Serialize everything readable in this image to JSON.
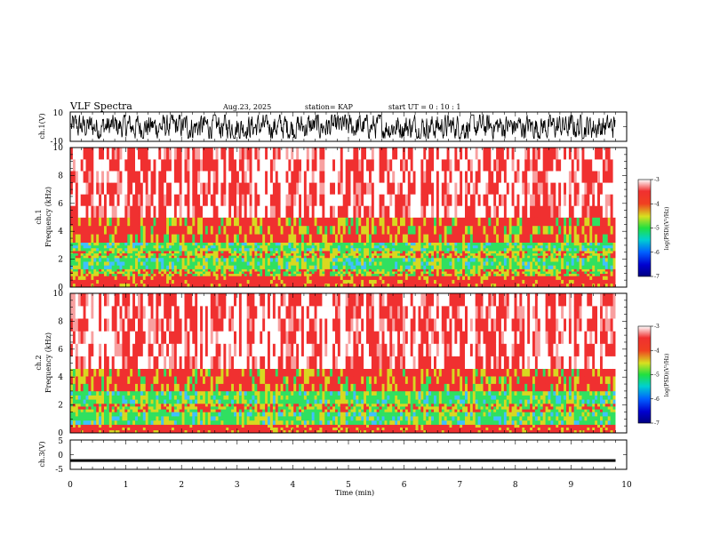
{
  "header": {
    "title": "VLF Spectra",
    "date": "Aug.23, 2025",
    "station": "station= KAP",
    "start_ut": "start  UT =   0  : 10 : 1"
  },
  "colors": {
    "red": "#f03030",
    "yellow": "#d8d820",
    "green": "#30e060",
    "cyan": "#40c0ff",
    "blue": "#0000d0",
    "navy": "#000080",
    "trace": "#000000"
  },
  "chart_data": [
    {
      "type": "line",
      "name": "ch1-waveform",
      "ylabel": "ch.1(V)",
      "ylim": [
        -10,
        10
      ],
      "yticks": [
        "10",
        "-10"
      ],
      "xlim": [
        0,
        10
      ],
      "trace_extent_min": [
        0.0,
        9.8
      ],
      "trace_range_v": [
        -8,
        8
      ]
    },
    {
      "type": "heatmap",
      "name": "ch1-spectrogram",
      "ylabel": "ch.1\nFrequency (kHz)",
      "ylabel_lines": [
        "ch.1",
        "Frequency (kHz)"
      ],
      "ylim": [
        0,
        10
      ],
      "yticks": [
        "0",
        "2",
        "4",
        "6",
        "8",
        "10"
      ],
      "xlim": [
        0,
        10
      ],
      "data_extent_min": [
        0.0,
        9.8
      ],
      "bands_khz": [
        {
          "range": [
            0.0,
            0.8
          ],
          "level": "red"
        },
        {
          "range": [
            0.8,
            1.3
          ],
          "level": "yellow"
        },
        {
          "range": [
            1.3,
            2.1
          ],
          "level": "green"
        },
        {
          "range": [
            2.1,
            2.6
          ],
          "level": "yellow"
        },
        {
          "range": [
            2.6,
            3.2
          ],
          "level": "green"
        },
        {
          "range": [
            3.2,
            5.0
          ],
          "level": "yellow-red"
        },
        {
          "range": [
            5.0,
            10.0
          ],
          "level": "red-white"
        }
      ],
      "colorbar": {
        "label": "log(PSD)(V²/Hz)",
        "range": [
          -7,
          -3
        ],
        "ticks": [
          "-3",
          "-4",
          "-5",
          "-6",
          "-7"
        ]
      }
    },
    {
      "type": "heatmap",
      "name": "ch2-spectrogram",
      "ylabel": "ch.2\nFrequency (kHz)",
      "ylabel_lines": [
        "ch.2",
        "Frequency (kHz)"
      ],
      "ylim": [
        0,
        10
      ],
      "yticks": [
        "0",
        "2",
        "4",
        "6",
        "8",
        "10"
      ],
      "xlim": [
        0,
        10
      ],
      "data_extent_min": [
        0.0,
        9.8
      ],
      "bands_khz": [
        {
          "range": [
            0.0,
            0.6
          ],
          "level": "red"
        },
        {
          "range": [
            0.6,
            1.5
          ],
          "level": "green"
        },
        {
          "range": [
            1.5,
            2.1
          ],
          "level": "yellow"
        },
        {
          "range": [
            2.1,
            3.0
          ],
          "level": "green"
        },
        {
          "range": [
            3.0,
            4.6
          ],
          "level": "yellow-red"
        },
        {
          "range": [
            4.6,
            10.0
          ],
          "level": "red-white"
        }
      ],
      "colorbar": {
        "label": "log(PSD)(V²/Hz)",
        "range": [
          -7,
          -3
        ],
        "ticks": [
          "-3",
          "-4",
          "-5",
          "-6",
          "-7"
        ]
      }
    },
    {
      "type": "line",
      "name": "ch3-waveform",
      "ylabel": "ch.3(V)",
      "ylim": [
        -5,
        5
      ],
      "yticks": [
        "5",
        "0",
        "-5"
      ],
      "xlim": [
        0,
        10
      ],
      "trace_extent_min": [
        0.0,
        9.8
      ],
      "trace_level_v": -2,
      "trace_spread_v": 0.45
    }
  ],
  "xaxis": {
    "label": "Time (min)",
    "ticks": [
      "0",
      "1",
      "2",
      "3",
      "4",
      "5",
      "6",
      "7",
      "8",
      "9",
      "10"
    ]
  }
}
